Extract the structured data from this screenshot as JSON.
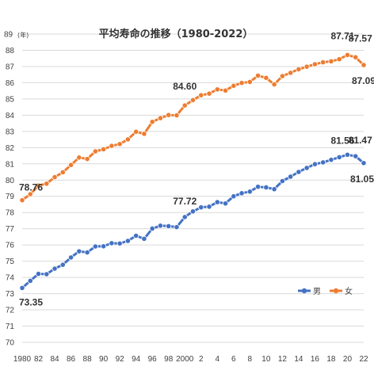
{
  "chart_data": {
    "type": "line",
    "title": "平均寿命の推移（1980-2022）",
    "y_unit": "(年)",
    "xlabel": "",
    "ylabel": "",
    "ylim": [
      70,
      89
    ],
    "y_ticks": [
      70,
      71,
      72,
      73,
      74,
      75,
      76,
      77,
      78,
      79,
      80,
      81,
      82,
      83,
      84,
      85,
      86,
      87,
      88,
      89
    ],
    "x_ticks": [
      {
        "year": 1980,
        "label": "1980"
      },
      {
        "year": 1982,
        "label": "82"
      },
      {
        "year": 1984,
        "label": "84"
      },
      {
        "year": 1986,
        "label": "86"
      },
      {
        "year": 1988,
        "label": "88"
      },
      {
        "year": 1990,
        "label": "90"
      },
      {
        "year": 1992,
        "label": "92"
      },
      {
        "year": 1994,
        "label": "94"
      },
      {
        "year": 1996,
        "label": "96"
      },
      {
        "year": 1998,
        "label": "98"
      },
      {
        "year": 2000,
        "label": "2000"
      },
      {
        "year": 2002,
        "label": "2"
      },
      {
        "year": 2004,
        "label": "4"
      },
      {
        "year": 2006,
        "label": "6"
      },
      {
        "year": 2008,
        "label": "8"
      },
      {
        "year": 2010,
        "label": "10"
      },
      {
        "year": 2012,
        "label": "12"
      },
      {
        "year": 2014,
        "label": "14"
      },
      {
        "year": 2016,
        "label": "16"
      },
      {
        "year": 2018,
        "label": "18"
      },
      {
        "year": 2020,
        "label": "20"
      },
      {
        "year": 2022,
        "label": "22"
      }
    ],
    "x": [
      1980,
      1981,
      1982,
      1983,
      1984,
      1985,
      1986,
      1987,
      1988,
      1989,
      1990,
      1991,
      1992,
      1993,
      1994,
      1995,
      1996,
      1997,
      1998,
      1999,
      2000,
      2001,
      2002,
      2003,
      2004,
      2005,
      2006,
      2007,
      2008,
      2009,
      2010,
      2011,
      2012,
      2013,
      2014,
      2015,
      2016,
      2017,
      2018,
      2019,
      2020,
      2021,
      2022
    ],
    "series": [
      {
        "name": "男",
        "color": "#4472C4",
        "values": [
          73.35,
          73.79,
          74.22,
          74.2,
          74.54,
          74.78,
          75.23,
          75.61,
          75.54,
          75.91,
          75.92,
          76.11,
          76.09,
          76.25,
          76.57,
          76.38,
          77.01,
          77.19,
          77.16,
          77.1,
          77.72,
          78.07,
          78.32,
          78.36,
          78.64,
          78.56,
          79.0,
          79.19,
          79.29,
          79.59,
          79.55,
          79.44,
          79.94,
          80.21,
          80.5,
          80.75,
          80.98,
          81.09,
          81.25,
          81.41,
          81.56,
          81.47,
          81.05
        ]
      },
      {
        "name": "女",
        "color": "#ED7D31",
        "values": [
          78.76,
          79.13,
          79.66,
          79.78,
          80.18,
          80.48,
          80.93,
          81.39,
          81.3,
          81.77,
          81.9,
          82.11,
          82.22,
          82.51,
          82.98,
          82.85,
          83.59,
          83.82,
          84.01,
          83.99,
          84.6,
          84.93,
          85.23,
          85.33,
          85.59,
          85.52,
          85.81,
          85.99,
          86.05,
          86.44,
          86.3,
          85.9,
          86.41,
          86.61,
          86.83,
          86.99,
          87.14,
          87.26,
          87.32,
          87.45,
          87.71,
          87.57,
          87.09
        ]
      }
    ],
    "annotations": [
      {
        "series": 1,
        "index": 0,
        "text": "78.76"
      },
      {
        "series": 1,
        "index": 20,
        "text": "84.60"
      },
      {
        "series": 1,
        "index": 40,
        "text": "87.71"
      },
      {
        "series": 1,
        "index": 41,
        "text": "87.57"
      },
      {
        "series": 1,
        "index": 42,
        "text": "87.09"
      },
      {
        "series": 0,
        "index": 0,
        "text": "73.35"
      },
      {
        "series": 0,
        "index": 20,
        "text": "77.72"
      },
      {
        "series": 0,
        "index": 40,
        "text": "81.56"
      },
      {
        "series": 0,
        "index": 41,
        "text": "81.47"
      },
      {
        "series": 0,
        "index": 42,
        "text": "81.05"
      }
    ],
    "grid": true,
    "legend": "bottom-right"
  }
}
